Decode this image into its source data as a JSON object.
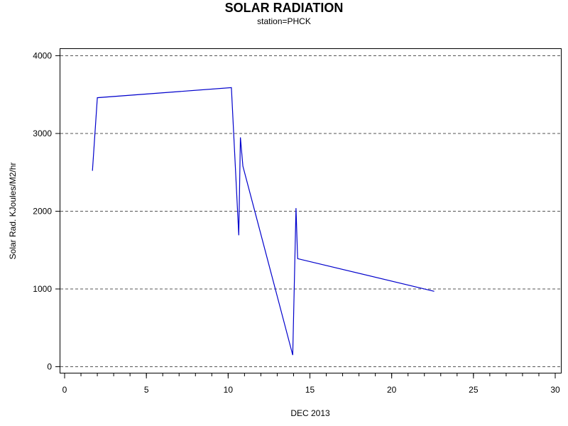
{
  "chart_data": {
    "type": "line",
    "title": "SOLAR RADIATION",
    "subtitle": "station=PHCK",
    "xlabel": "DEC 2013",
    "ylabel": "Solar Rad. KJoules/M2/hr",
    "xlim": [
      0,
      30
    ],
    "ylim": [
      0,
      4000
    ],
    "xticks": [
      0,
      5,
      10,
      15,
      20,
      25,
      30
    ],
    "yticks": [
      0,
      1000,
      2000,
      3000,
      4000
    ],
    "grid": "horizontal dashed",
    "series": [
      {
        "color": "#0000cc",
        "x": [
          1.7,
          2.0,
          10.2,
          10.65,
          10.75,
          10.9,
          13.95,
          14.15,
          14.25,
          22.6
        ],
        "y": [
          2520,
          3460,
          3590,
          1690,
          2950,
          2580,
          150,
          2040,
          1390,
          970
        ]
      }
    ]
  }
}
